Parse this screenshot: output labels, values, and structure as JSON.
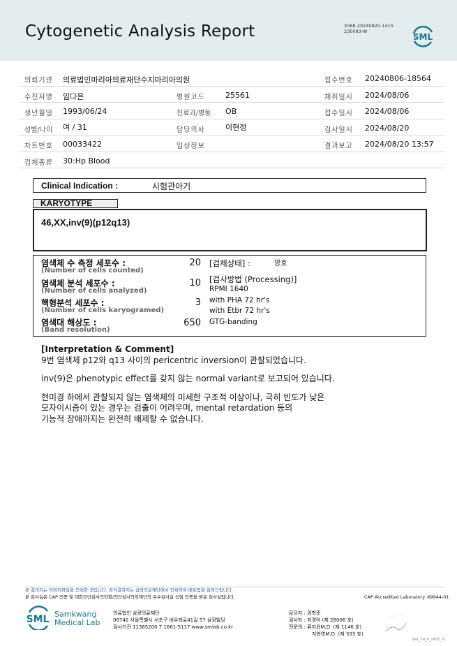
{
  "header": {
    "title": "Cytogenetic Analysis Report",
    "code_line1": "3068-20240820-1415",
    "code_line2": "230083-W",
    "logo_text": "SML"
  },
  "info": {
    "r0": {
      "l1": "의뢰기관",
      "v1": "의료법인마리아의료재단수지마리아의원",
      "l3": "접수번호",
      "v3": "20240806-18564"
    },
    "r1": {
      "l1": "수진자명",
      "v1": "임다은",
      "l2": "병원코드",
      "v2": "25561",
      "l3": "채취일시",
      "v3": "2024/08/06"
    },
    "r2": {
      "l1": "생년월일",
      "v1": "1993/06/24",
      "l2": "진료과/병동",
      "v2": "OB",
      "l3": "접수일시",
      "v3": "2024/08/06"
    },
    "r3": {
      "l1": "성별/나이",
      "v1": "여 / 31",
      "l2": "담당의사",
      "v2": "이현정",
      "l3": "검사일시",
      "v3": "2024/08/20"
    },
    "r4": {
      "l1": "차트번호",
      "v1": "00033422",
      "l2": "임상정보",
      "l3": "결과보고",
      "v3": "2024/08/20 13:57"
    },
    "r5": {
      "l1": "검체종류",
      "v1": "30:Hp Blood"
    }
  },
  "clinical": {
    "label": "Clinical Indication :",
    "value": "시험관아기"
  },
  "karyotype": {
    "tab": "KARYOTYPE",
    "value": "46,XX,inv(9)(p12q13)"
  },
  "cells": {
    "counted": {
      "ko": "염색체 수 측정 세포수 :",
      "en": "(Number of cells counted)",
      "value": "20"
    },
    "analyzed": {
      "ko": "염색체 분석 세포수 :",
      "en": "(Number of cells analyzed)",
      "value": "10"
    },
    "karyogramed": {
      "ko": "핵형분석 세포수 :",
      "en": "(Number of cells karyogramed)",
      "value": "3"
    },
    "band": {
      "ko": "염색대 해상도 :",
      "en": "(Band resolution)",
      "value": "650"
    },
    "status_label": "[검체상태] :",
    "status_value": "양호",
    "processing_label": "[검사방법 (Processing)]",
    "processing": [
      "RPMI 1640",
      "with PHA 72 hr's",
      "with Etbr 72 hr's",
      "GTG-banding"
    ]
  },
  "interpretation": {
    "title": "[Interpretation & Comment]",
    "p1": "9번 염색체 p12와 q13 사이의 pericentric inversion이 관찰되었습니다.",
    "p2": "inv(9)은 phenotypic effect를 갖지 않는 normal variant로 보고되어 있습니다.",
    "p3a": "현미경 하에서 관찰되지 않는 염색체의 미세한 구조적 이상이나, 극히 빈도가 낮은",
    "p3b": "모자이시즘이 있는 경우는 검출이 어려우며, mental retardation 등의",
    "p3c": "기능적 장애까지는 완전히 배제할 수 없습니다."
  },
  "footer": {
    "notice1": "본 결과지는 이미지파일을 인쇄한 것입니다. 정식결과지는 삼광의료재단에서 인쇄하여 배포됨을 알려드립니다.",
    "notice2": "본 검사실은 CAP 인증 및 대한진단검사의학회/진단검사의학재단의 우수검사실 신임 인증을 받은 검사실입니다.",
    "cap": "CAP Accredited Laboratory. 69944-01",
    "brand1": "Samkwang",
    "brand2": "Medical Lab",
    "org": "의료법인 삼광의료재단",
    "addr": "06742 서울특별시 서초구 바우뫼로41길 57 삼광빌딩",
    "contact": "검사기관 11365200 T 1661-5117 www.smlab.co.kr",
    "staff1": "담당자 : 권혁준",
    "staff2": "검사자 : 지경아 (제 28006 호)",
    "staff3": "전문의 : 류지윤M.D. (제 1146 호)",
    "staff4": "지현영M.D. (제 333 호)",
    "form": "SML_TR_P_2408_V1"
  },
  "colors": {
    "header_bg": "#e3ecef",
    "brand": "#1a7a8c",
    "notice_blue": "#3355aa"
  }
}
